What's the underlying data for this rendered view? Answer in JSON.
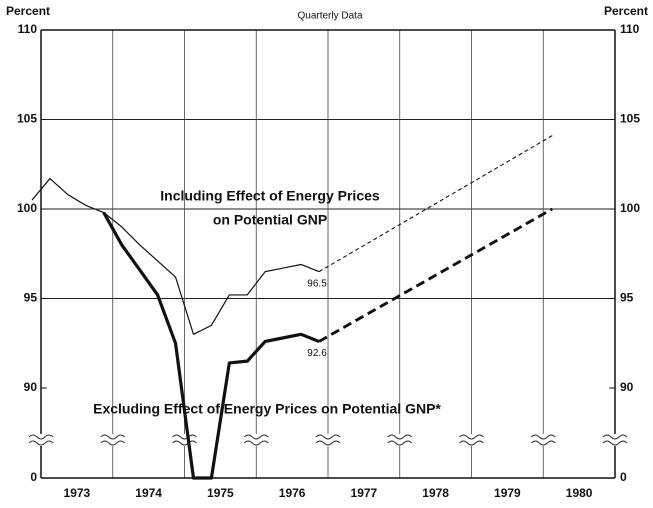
{
  "chart_data": {
    "type": "line",
    "title": "Quarterly Data",
    "y_label": "Percent",
    "y2_label": "Percent",
    "xlim": [
      1973,
      1981
    ],
    "xticks": [
      {
        "value": 1973.5,
        "label": "1973"
      },
      {
        "value": 1974.5,
        "label": "1974"
      },
      {
        "value": 1975.5,
        "label": "1975"
      },
      {
        "value": 1976.5,
        "label": "1976"
      },
      {
        "value": 1977.5,
        "label": "1977"
      },
      {
        "value": 1978.5,
        "label": "1978"
      },
      {
        "value": 1979.5,
        "label": "1979"
      },
      {
        "value": 1980.5,
        "label": "1980"
      }
    ],
    "xgrid": [
      1974,
      1975,
      1976,
      1977,
      1978,
      1979,
      1980
    ],
    "ylim": [
      90,
      110
    ],
    "yticks": [
      0,
      90,
      95,
      100,
      105,
      110
    ],
    "axis_break": true,
    "grid": true,
    "label_last": true,
    "series": [
      {
        "name": [
          "Including Effect of Energy Prices",
          "on Potential GNP"
        ],
        "color": "#111111",
        "width": 1.2,
        "x": [
          1972.875,
          1973.125,
          1973.375,
          1973.625,
          1973.875,
          1974.125,
          1974.375,
          1974.625,
          1974.875,
          1975.125,
          1975.375,
          1975.625,
          1975.875,
          1976.125,
          1976.375,
          1976.625,
          1976.875
        ],
        "values": [
          100.5,
          101.7,
          100.8,
          100.2,
          99.8,
          99.0,
          98.0,
          97.1,
          96.2,
          93.0,
          93.5,
          95.2,
          95.2,
          96.5,
          96.7,
          96.9,
          96.5
        ],
        "projection": {
          "x": [
            1980.125
          ],
          "values": [
            104.1
          ]
        }
      },
      {
        "name": [
          "Excluding Effect of Energy Prices on Potential GNP*"
        ],
        "color": "#111111",
        "width": 3.2,
        "x": [
          1973.875,
          1974.125,
          1974.375,
          1974.625,
          1974.875,
          1975.125,
          1975.375,
          1975.625,
          1975.875,
          1976.125,
          1976.375,
          1976.625,
          1976.875
        ],
        "values": [
          99.8,
          98.0,
          96.6,
          95.2,
          92.5,
          89.4,
          89.7,
          91.4,
          91.5,
          92.6,
          92.8,
          93.0,
          92.6
        ],
        "projection": {
          "x": [
            1980.125
          ],
          "values": [
            100.0
          ]
        }
      }
    ]
  }
}
